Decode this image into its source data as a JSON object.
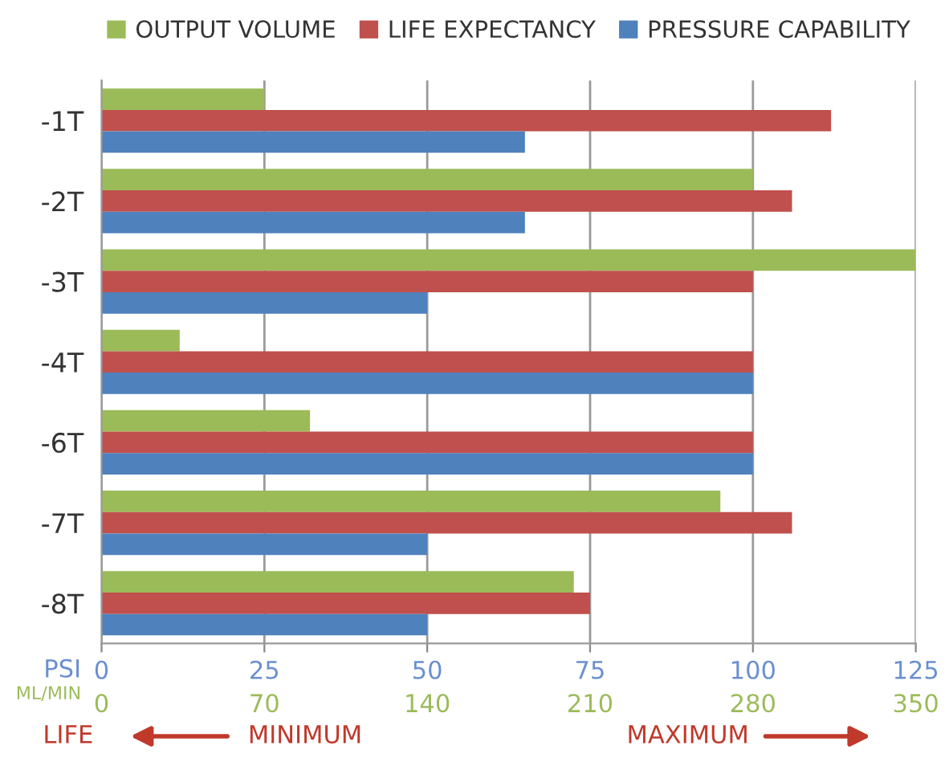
{
  "chart_data": {
    "type": "bar",
    "orientation": "horizontal",
    "categories": [
      "-1T",
      "-2T",
      "-3T",
      "-4T",
      "-6T",
      "-7T",
      "-8T"
    ],
    "series": [
      {
        "name": "OUTPUT VOLUME",
        "color": "#9bbb59",
        "values": [
          25,
          100,
          125,
          12,
          32,
          95,
          72.5
        ]
      },
      {
        "name": "LIFE EXPECTANCY",
        "color": "#c0504d",
        "values": [
          112,
          106,
          100,
          100,
          100,
          106,
          75
        ]
      },
      {
        "name": "PRESSURE CAPABILITY",
        "color": "#4f81bd",
        "values": [
          65,
          65,
          50,
          100,
          100,
          50,
          50
        ]
      }
    ],
    "xlim": [
      0,
      125
    ],
    "xticks": [
      0,
      25,
      50,
      75,
      100,
      125
    ],
    "xlabel": "PSI",
    "x2lim": [
      0,
      350
    ],
    "x2ticks": [
      0,
      70,
      140,
      210,
      280,
      350
    ],
    "x2label": "ML/MIN",
    "annotations": [
      "LIFE",
      "MINIMUM",
      "MAXIMUM"
    ],
    "grid": "x",
    "legend": "top"
  }
}
